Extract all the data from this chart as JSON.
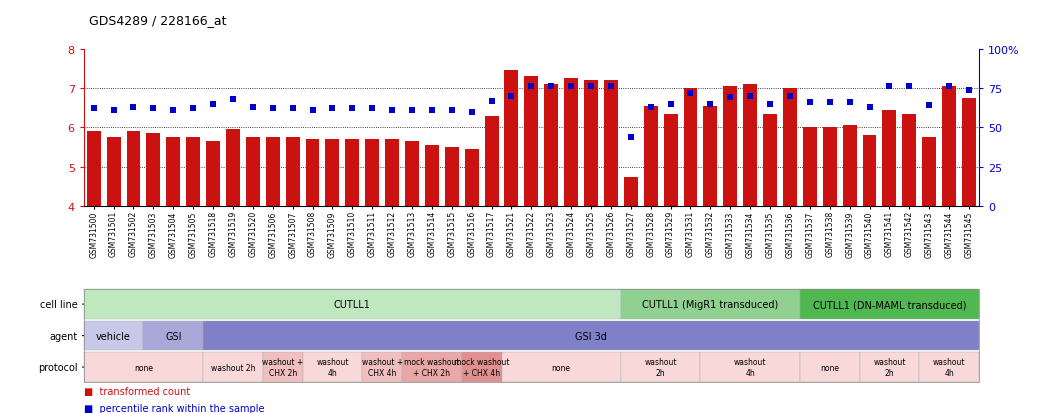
{
  "title": "GDS4289 / 228166_at",
  "samples": [
    "GSM731500",
    "GSM731501",
    "GSM731502",
    "GSM731503",
    "GSM731504",
    "GSM731505",
    "GSM731518",
    "GSM731519",
    "GSM731520",
    "GSM731506",
    "GSM731507",
    "GSM731508",
    "GSM731509",
    "GSM731510",
    "GSM731511",
    "GSM731512",
    "GSM731513",
    "GSM731514",
    "GSM731515",
    "GSM731516",
    "GSM731517",
    "GSM731521",
    "GSM731522",
    "GSM731523",
    "GSM731524",
    "GSM731525",
    "GSM731526",
    "GSM731527",
    "GSM731528",
    "GSM731529",
    "GSM731531",
    "GSM731532",
    "GSM731533",
    "GSM731534",
    "GSM731535",
    "GSM731536",
    "GSM731537",
    "GSM731538",
    "GSM731539",
    "GSM731540",
    "GSM731541",
    "GSM731542",
    "GSM731543",
    "GSM731544",
    "GSM731545"
  ],
  "bar_values": [
    5.9,
    5.75,
    5.9,
    5.85,
    5.75,
    5.75,
    5.65,
    5.95,
    5.75,
    5.75,
    5.75,
    5.7,
    5.7,
    5.7,
    5.7,
    5.7,
    5.65,
    5.55,
    5.5,
    5.45,
    6.3,
    7.45,
    7.3,
    7.1,
    7.25,
    7.2,
    7.2,
    4.75,
    6.55,
    6.35,
    7.0,
    6.55,
    7.05,
    7.1,
    6.35,
    7.0,
    6.0,
    6.0,
    6.05,
    5.8,
    6.45,
    6.35,
    5.75,
    7.05,
    6.75
  ],
  "percentile_values": [
    62,
    61,
    63,
    62,
    61,
    62,
    65,
    68,
    63,
    62,
    62,
    61,
    62,
    62,
    62,
    61,
    61,
    61,
    61,
    60,
    67,
    70,
    76,
    76,
    76,
    76,
    76,
    44,
    63,
    65,
    72,
    65,
    69,
    70,
    65,
    70,
    66,
    66,
    66,
    63,
    76,
    76,
    64,
    76,
    74
  ],
  "ylim": [
    4,
    8
  ],
  "yticks": [
    4,
    5,
    6,
    7,
    8
  ],
  "right_ylim": [
    0,
    100
  ],
  "right_yticks": [
    0,
    25,
    50,
    75,
    100
  ],
  "right_yticklabels": [
    "0",
    "25",
    "50",
    "75",
    "100%"
  ],
  "bar_color": "#cc1111",
  "dot_color": "#0000cc",
  "cell_line_groups": [
    {
      "label": "CUTLL1",
      "start": 0,
      "end": 27,
      "color": "#c0e8c0"
    },
    {
      "label": "CUTLL1 (MigR1 transduced)",
      "start": 27,
      "end": 36,
      "color": "#90d090"
    },
    {
      "label": "CUTLL1 (DN-MAML transduced)",
      "start": 36,
      "end": 45,
      "color": "#50b850"
    }
  ],
  "agent_groups": [
    {
      "label": "vehicle",
      "start": 0,
      "end": 3,
      "color": "#c8c8e8"
    },
    {
      "label": "GSI",
      "start": 3,
      "end": 6,
      "color": "#a8a8d8"
    },
    {
      "label": "GSI 3d",
      "start": 6,
      "end": 45,
      "color": "#8080c8"
    }
  ],
  "protocol_groups": [
    {
      "label": "none",
      "start": 0,
      "end": 6,
      "color": "#f8d8d8"
    },
    {
      "label": "washout 2h",
      "start": 6,
      "end": 9,
      "color": "#f8d8d8"
    },
    {
      "label": "washout +\nCHX 2h",
      "start": 9,
      "end": 11,
      "color": "#f0c0c0"
    },
    {
      "label": "washout\n4h",
      "start": 11,
      "end": 14,
      "color": "#f8d8d8"
    },
    {
      "label": "washout +\nCHX 4h",
      "start": 14,
      "end": 16,
      "color": "#f0c0c0"
    },
    {
      "label": "mock washout\n+ CHX 2h",
      "start": 16,
      "end": 19,
      "color": "#e8a8a8"
    },
    {
      "label": "mock washout\n+ CHX 4h",
      "start": 19,
      "end": 21,
      "color": "#e09090"
    },
    {
      "label": "none",
      "start": 21,
      "end": 27,
      "color": "#f8d8d8"
    },
    {
      "label": "washout\n2h",
      "start": 27,
      "end": 31,
      "color": "#f8d8d8"
    },
    {
      "label": "washout\n4h",
      "start": 31,
      "end": 36,
      "color": "#f8d8d8"
    },
    {
      "label": "none",
      "start": 36,
      "end": 39,
      "color": "#f8d8d8"
    },
    {
      "label": "washout\n2h",
      "start": 39,
      "end": 42,
      "color": "#f8d8d8"
    },
    {
      "label": "washout\n4h",
      "start": 42,
      "end": 45,
      "color": "#f8d8d8"
    }
  ]
}
